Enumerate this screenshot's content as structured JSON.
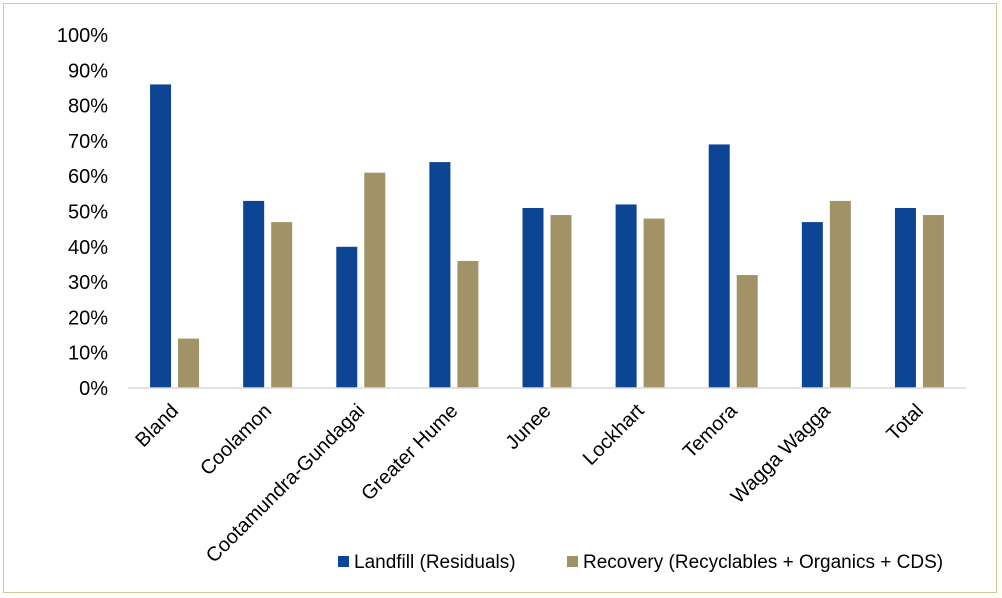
{
  "chart_data": {
    "type": "bar",
    "categories": [
      "Bland",
      "Coolamon",
      "Cootamundra-Gundagai",
      "Greater Hume",
      "Junee",
      "Lockhart",
      "Temora",
      "Wagga Wagga",
      "Total"
    ],
    "series": [
      {
        "name": "Landfill (Residuals)",
        "color": "#0d4595",
        "values": [
          86,
          53,
          40,
          64,
          51,
          52,
          69,
          47,
          51
        ]
      },
      {
        "name": "Recovery (Recyclables + Organics + CDS)",
        "color": "#a19366",
        "values": [
          14,
          47,
          61,
          36,
          49,
          48,
          32,
          53,
          49
        ]
      }
    ],
    "y_ticks": [
      "0%",
      "10%",
      "20%",
      "30%",
      "40%",
      "50%",
      "60%",
      "70%",
      "80%",
      "90%",
      "100%"
    ],
    "ylim": [
      0,
      100
    ],
    "legend_position": "bottom-right",
    "grid": false
  }
}
